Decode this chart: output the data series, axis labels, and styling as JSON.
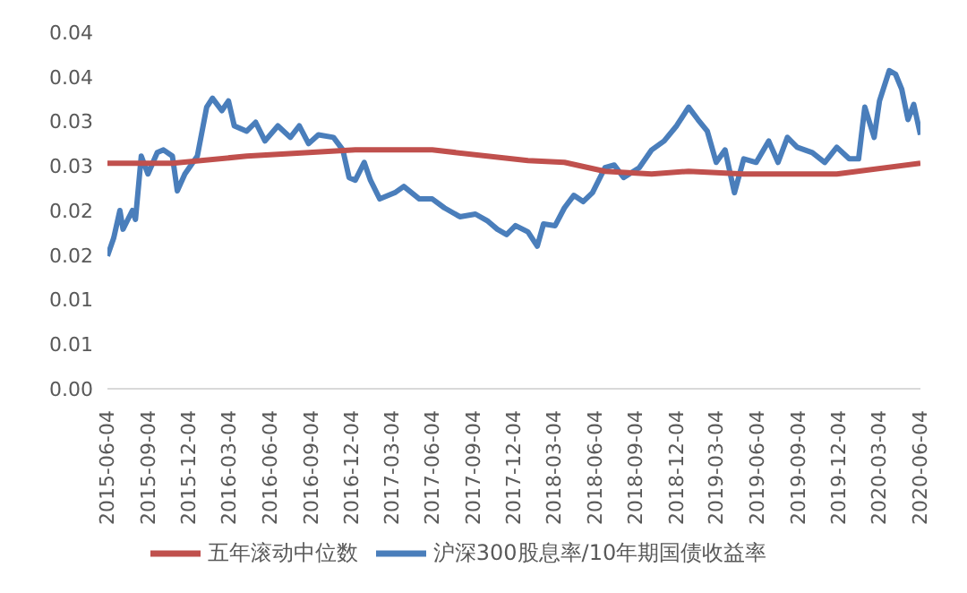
{
  "chart_data": {
    "type": "line",
    "legend": "bottom",
    "marker": "none",
    "line_style": "solid",
    "ylim": [
      0,
      0.04
    ],
    "yticks": [
      {
        "value": 0,
        "label": "0.00"
      },
      {
        "value": 0.005,
        "label": "0.01"
      },
      {
        "value": 0.01,
        "label": "0.01"
      },
      {
        "value": 0.015,
        "label": "0.02"
      },
      {
        "value": 0.02,
        "label": "0.02"
      },
      {
        "value": 0.025,
        "label": "0.03"
      },
      {
        "value": 0.03,
        "label": "0.03"
      },
      {
        "value": 0.035,
        "label": "0.04"
      },
      {
        "value": 0.04,
        "label": "0.04"
      }
    ],
    "xlim": [
      "2015-06-04",
      "2020-06-04"
    ],
    "xticks": [
      "2015-06-04",
      "2015-09-04",
      "2015-12-04",
      "2016-03-04",
      "2016-06-04",
      "2016-09-04",
      "2016-12-04",
      "2017-03-04",
      "2017-06-04",
      "2017-09-04",
      "2017-12-04",
      "2018-03-04",
      "2018-06-04",
      "2018-09-04",
      "2018-12-04",
      "2019-03-04",
      "2019-06-04",
      "2019-09-04",
      "2019-12-04",
      "2020-03-04",
      "2020-06-04"
    ],
    "series": [
      {
        "name": "沪深300股息率/10年期国债收益率",
        "color": "#4a7ebb",
        "x": [
          "2015-06-04",
          "2015-06-18",
          "2015-07-02",
          "2015-07-09",
          "2015-07-30",
          "2015-08-06",
          "2015-08-19",
          "2015-09-03",
          "2015-09-24",
          "2015-10-08",
          "2015-10-28",
          "2015-11-08",
          "2015-11-25",
          "2015-12-23",
          "2016-01-13",
          "2016-01-26",
          "2016-02-16",
          "2016-03-02",
          "2016-03-15",
          "2016-04-12",
          "2016-05-02",
          "2016-05-23",
          "2016-06-21",
          "2016-07-19",
          "2016-08-08",
          "2016-08-29",
          "2016-09-20",
          "2016-10-24",
          "2016-11-14",
          "2016-11-28",
          "2016-12-12",
          "2017-01-01",
          "2017-01-15",
          "2017-02-05",
          "2017-03-11",
          "2017-03-31",
          "2017-05-05",
          "2017-06-03",
          "2017-06-30",
          "2017-08-04",
          "2017-09-08",
          "2017-10-06",
          "2017-10-27",
          "2017-11-17",
          "2017-12-07",
          "2018-01-04",
          "2018-01-25",
          "2018-02-08",
          "2018-03-06",
          "2018-03-27",
          "2018-04-17",
          "2018-05-08",
          "2018-05-29",
          "2018-06-26",
          "2018-07-17",
          "2018-08-07",
          "2018-09-11",
          "2018-10-09",
          "2018-11-06",
          "2018-12-04",
          "2018-12-31",
          "2019-01-21",
          "2019-02-11",
          "2019-03-03",
          "2019-03-23",
          "2019-04-13",
          "2019-05-04",
          "2019-06-01",
          "2019-06-29",
          "2019-07-20",
          "2019-08-10",
          "2019-09-01",
          "2019-10-05",
          "2019-11-02",
          "2019-11-29",
          "2019-12-27",
          "2020-01-17",
          "2020-01-31",
          "2020-02-21",
          "2020-03-04",
          "2020-03-26",
          "2020-04-09",
          "2020-04-23",
          "2020-05-07",
          "2020-05-20",
          "2020-06-04"
        ],
        "values": [
          0.0149,
          0.0169,
          0.02,
          0.0179,
          0.02,
          0.019,
          0.0261,
          0.0241,
          0.0265,
          0.0268,
          0.0261,
          0.0222,
          0.0241,
          0.0261,
          0.0316,
          0.0326,
          0.0312,
          0.0323,
          0.0295,
          0.0289,
          0.0299,
          0.0278,
          0.0295,
          0.0282,
          0.0295,
          0.0275,
          0.0285,
          0.0282,
          0.0268,
          0.0237,
          0.0234,
          0.0254,
          0.0234,
          0.0213,
          0.022,
          0.0227,
          0.0213,
          0.0213,
          0.0203,
          0.0193,
          0.0196,
          0.0188,
          0.0179,
          0.0173,
          0.0183,
          0.0176,
          0.016,
          0.0185,
          0.0183,
          0.0203,
          0.0217,
          0.021,
          0.022,
          0.0248,
          0.0251,
          0.0237,
          0.0248,
          0.0268,
          0.0278,
          0.0295,
          0.0316,
          0.0302,
          0.0289,
          0.0254,
          0.0268,
          0.022,
          0.0258,
          0.0254,
          0.0278,
          0.0254,
          0.0282,
          0.0271,
          0.0265,
          0.0254,
          0.0271,
          0.0258,
          0.0258,
          0.0316,
          0.0282,
          0.0323,
          0.0357,
          0.0353,
          0.0336,
          0.0302,
          0.0319,
          0.0285
        ]
      },
      {
        "name": "五年滚动中位数",
        "color": "#c0504d",
        "x": [
          "2015-06-04",
          "2015-10-28",
          "2016-04-12",
          "2016-12-12",
          "2017-06-03",
          "2018-01-04",
          "2018-03-27",
          "2018-06-26",
          "2018-10-09",
          "2018-12-31",
          "2019-05-04",
          "2019-11-29",
          "2020-06-04"
        ],
        "values": [
          0.0253,
          0.0253,
          0.0261,
          0.0268,
          0.0268,
          0.0256,
          0.0254,
          0.0244,
          0.0241,
          0.0244,
          0.0241,
          0.0241,
          0.0253
        ]
      }
    ]
  }
}
